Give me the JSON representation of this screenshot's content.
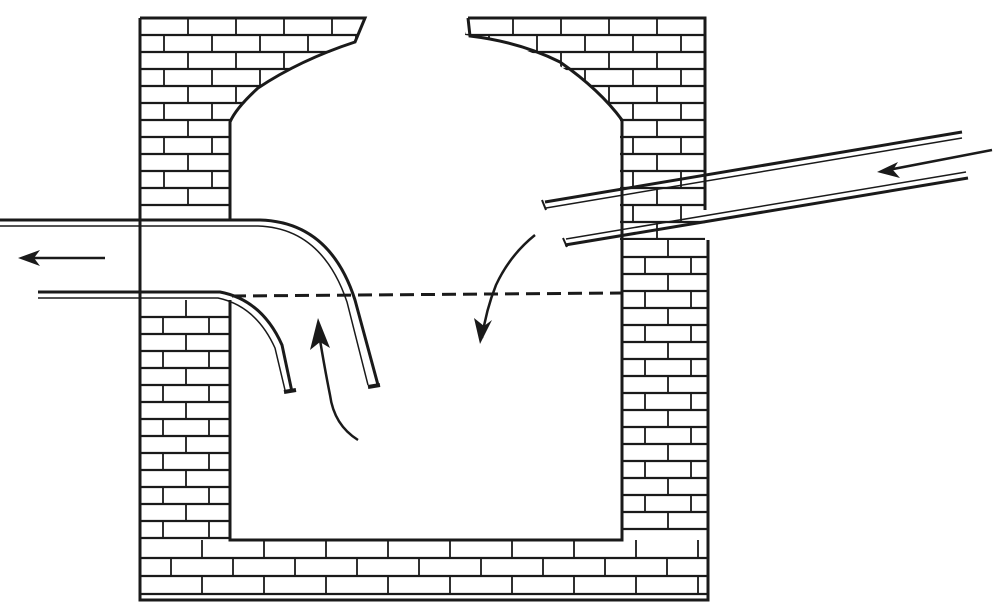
{
  "figure": {
    "subject": "cesspool-with-trapped-outlet",
    "ink_color": "#1a1a1a",
    "paper_color": "#ffffff",
    "brick_fill": "#ffffff",
    "water_line_style": "dashed",
    "icons": {
      "outflow_arrow": "arrow-left-icon",
      "inflow_arrow": "arrow-left-icon",
      "rising_arrow": "arrow-up-icon",
      "falling_arrow": "arrow-down-icon"
    }
  }
}
